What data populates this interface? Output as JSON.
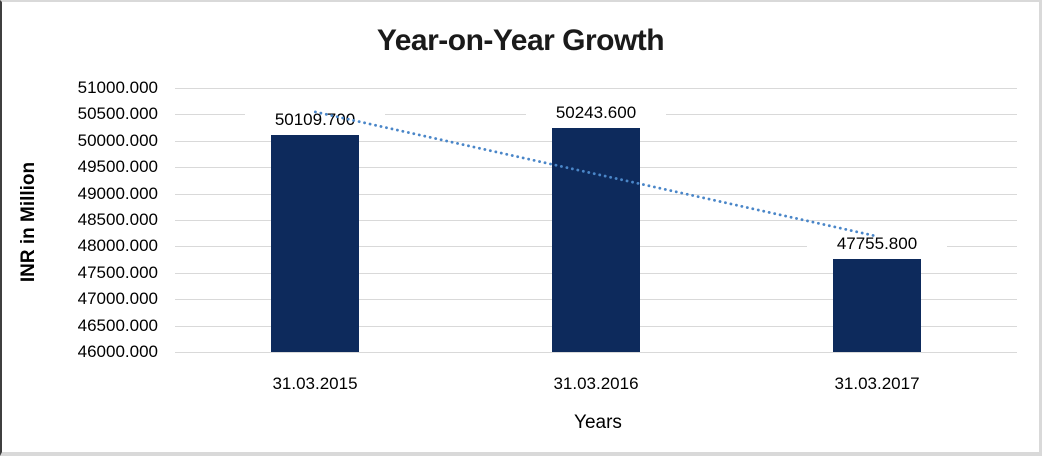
{
  "page": {
    "background": "#ffffff",
    "border_light_color": "#d9d9d9",
    "border_dark_color": "#3f3f3f"
  },
  "chart_data": {
    "type": "bar",
    "title": "Year-on-Year Growth",
    "categories": [
      "31.03.2015",
      "31.03.2016",
      "31.03.2017"
    ],
    "values": [
      50109.7,
      50243.6,
      47755.8
    ],
    "data_labels": [
      "50109.700",
      "50243.600",
      "47755.800"
    ],
    "xlabel": "Years",
    "ylabel": "INR in Million",
    "ylim": [
      46000,
      51000
    ],
    "ytick_step": 500,
    "ytick_labels": [
      "51000.000",
      "50500.000",
      "50000.000",
      "49500.000",
      "49000.000",
      "48500.000",
      "48000.000",
      "47500.000",
      "47000.000",
      "46500.000",
      "46000.000"
    ],
    "grid": "horizontal-light-gray",
    "legend": "none",
    "trendline": {
      "kind": "linear",
      "style": "dotted",
      "color": "#4a86c8"
    },
    "colors": {
      "bar_fill": "#0d2a5c",
      "gridline": "#d9d9d9",
      "title_text": "#1a1a1a",
      "axis_text": "#000000"
    }
  }
}
